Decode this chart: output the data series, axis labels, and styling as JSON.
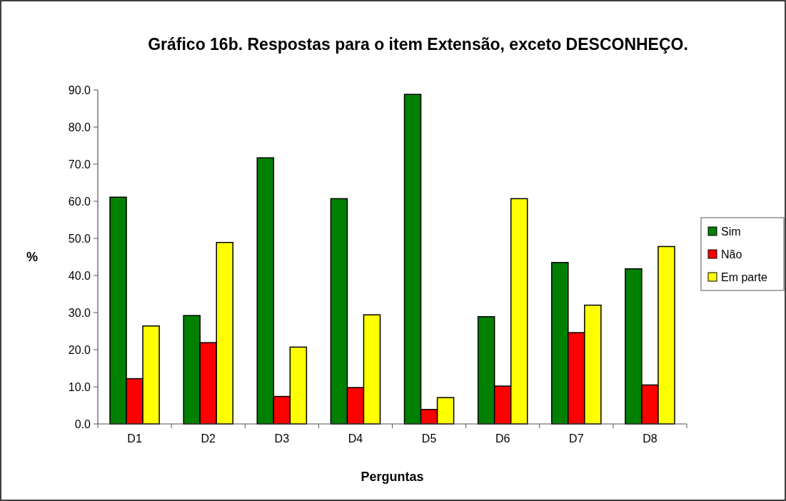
{
  "chart_data": {
    "type": "bar",
    "title": "Gráfico 16b. Respostas para o item Extensão, exceto DESCONHEÇO.",
    "xlabel": "Perguntas",
    "ylabel": "%",
    "categories": [
      "D1",
      "D2",
      "D3",
      "D4",
      "D5",
      "D6",
      "D7",
      "D8"
    ],
    "series": [
      {
        "name": "Sim",
        "color": "#008000",
        "values": [
          61.1,
          29.2,
          71.7,
          60.7,
          88.8,
          28.9,
          43.5,
          41.8
        ]
      },
      {
        "name": "Não",
        "color": "#ff0000",
        "values": [
          12.2,
          21.9,
          7.4,
          9.8,
          3.9,
          10.2,
          24.6,
          10.5
        ]
      },
      {
        "name": "Em parte",
        "color": "#ffff00",
        "values": [
          26.4,
          48.9,
          20.7,
          29.4,
          7.1,
          60.7,
          32.0,
          47.8
        ]
      }
    ],
    "ylim": [
      0,
      90
    ],
    "yticks": [
      {
        "value": 0,
        "label": "0.0"
      },
      {
        "value": 10,
        "label": "10.0"
      },
      {
        "value": 20,
        "label": "20.0"
      },
      {
        "value": 30,
        "label": "30.0"
      },
      {
        "value": 40,
        "label": "40.0"
      },
      {
        "value": 50,
        "label": "50.0"
      },
      {
        "value": 60,
        "label": "60.0"
      },
      {
        "value": 70,
        "label": "70.0"
      },
      {
        "value": 80,
        "label": "80.0"
      },
      {
        "value": 90,
        "label": "90.0"
      }
    ],
    "grid": false,
    "legend": "right"
  }
}
